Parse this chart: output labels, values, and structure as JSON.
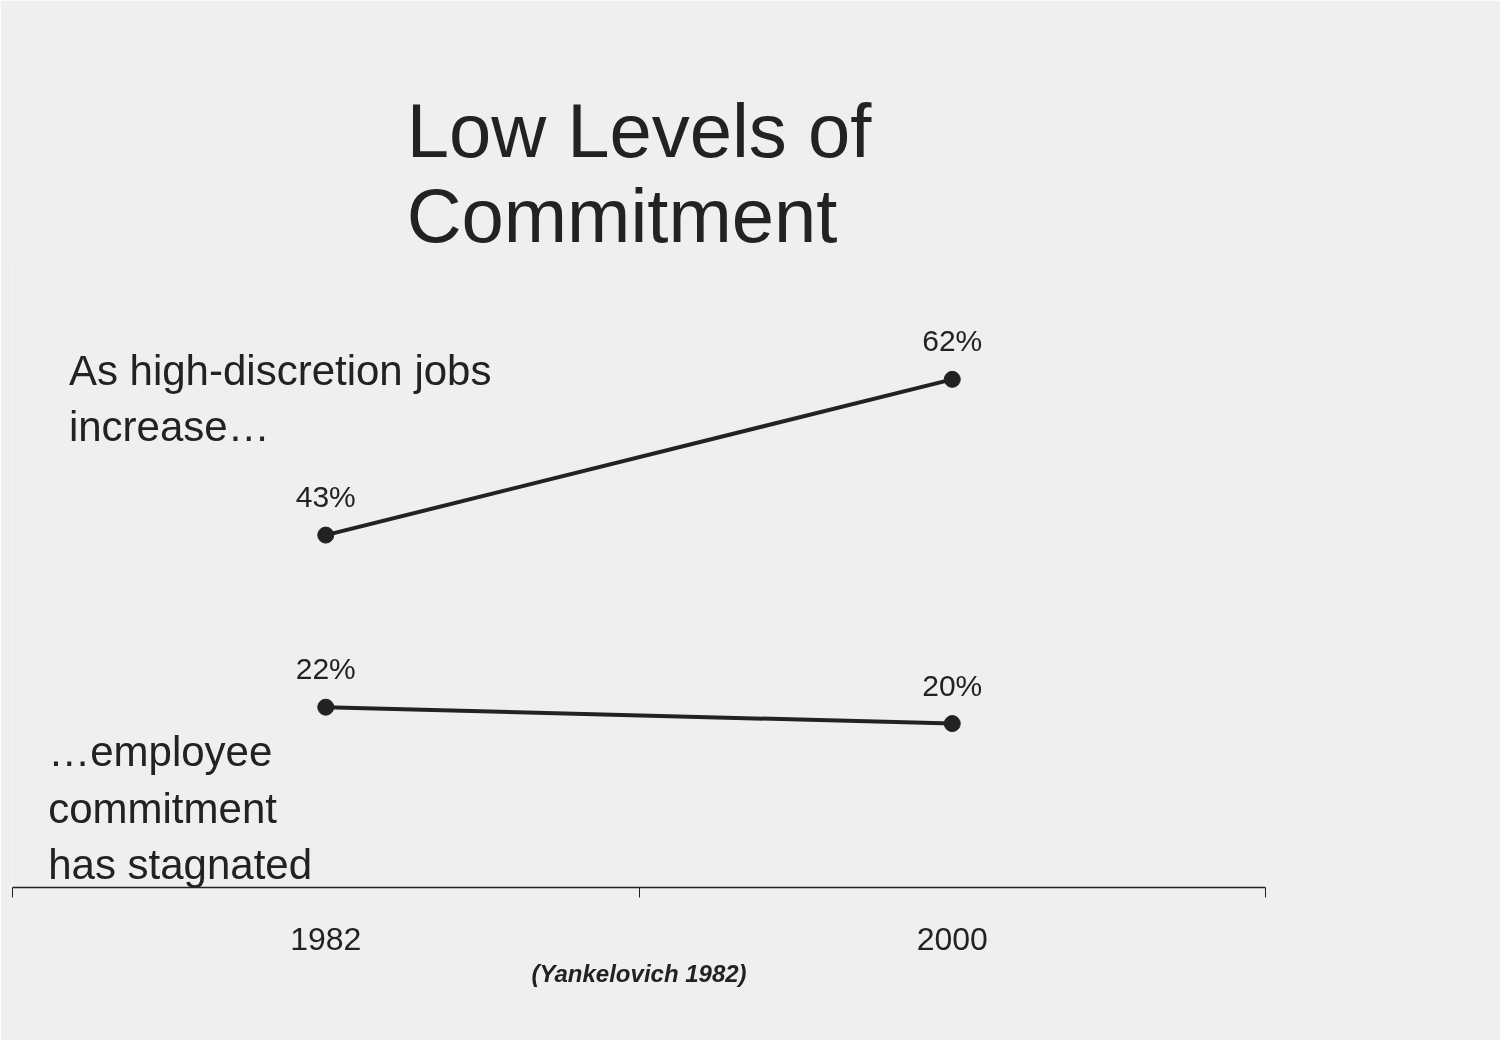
{
  "chart_data": {
    "type": "line",
    "title": "Low Levels of\nCommitment",
    "categories": [
      "1982",
      "2000"
    ],
    "series": [
      {
        "color": "#222222",
        "values": [
          43,
          62
        ],
        "value_labels": [
          "43%",
          "62%"
        ]
      },
      {
        "color": "#222222",
        "values": [
          22,
          20
        ],
        "value_labels": [
          "22%",
          "20%"
        ]
      }
    ],
    "marker": "circle",
    "line_style": "solid",
    "annotations": [
      "As high-discretion jobs\nincrease…",
      "…employee\ncommitment\nhas stagnated",
      "(Yankelovich 1982)"
    ]
  }
}
